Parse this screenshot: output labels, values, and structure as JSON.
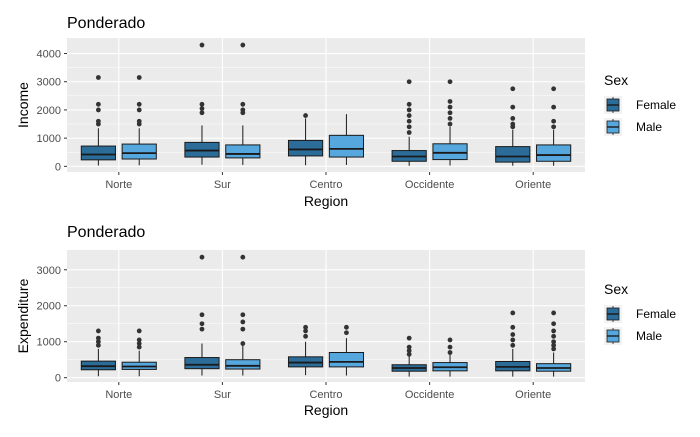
{
  "colors": {
    "female": "#2b6c99",
    "male": "#56a7dd",
    "panel_bg": "#ebebeb",
    "grid": "#ffffff",
    "outline": "#1a1a1a"
  },
  "chart_data": [
    {
      "type": "boxplot",
      "title": "Ponderado",
      "xlabel": "Region",
      "ylabel": "Income",
      "ylim": [
        -200,
        4550
      ],
      "yticks": [
        0,
        1000,
        2000,
        3000,
        4000
      ],
      "grid": true,
      "legend_position": "right",
      "legend_title": "Sex",
      "categories": [
        "Norte",
        "Sur",
        "Centro",
        "Occidente",
        "Oriente"
      ],
      "series": [
        {
          "name": "Female",
          "boxes": [
            {
              "min": 30,
              "q1": 230,
              "median": 420,
              "q3": 720,
              "max": 1350,
              "outliers": [
                1500,
                1600,
                2000,
                2200,
                3150
              ]
            },
            {
              "min": 60,
              "q1": 330,
              "median": 560,
              "q3": 850,
              "max": 1450,
              "outliers": [
                1900,
                2050,
                2200,
                4300
              ]
            },
            {
              "min": 40,
              "q1": 370,
              "median": 600,
              "q3": 920,
              "max": 1700,
              "outliers": [
                1800
              ]
            },
            {
              "min": 20,
              "q1": 180,
              "median": 350,
              "q3": 560,
              "max": 1050,
              "outliers": [
                1200,
                1400,
                1600,
                1800,
                2000,
                2200,
                3000
              ]
            },
            {
              "min": 20,
              "q1": 150,
              "median": 350,
              "q3": 700,
              "max": 1300,
              "outliers": [
                1400,
                1500,
                1700,
                2100,
                2750
              ]
            }
          ]
        },
        {
          "name": "Male",
          "boxes": [
            {
              "min": 40,
              "q1": 260,
              "median": 470,
              "q3": 790,
              "max": 1350,
              "outliers": [
                1500,
                1600,
                2000,
                2200,
                3150
              ]
            },
            {
              "min": 50,
              "q1": 300,
              "median": 440,
              "q3": 760,
              "max": 1450,
              "outliers": [
                1900,
                2000,
                2200,
                4300
              ]
            },
            {
              "min": 50,
              "q1": 330,
              "median": 620,
              "q3": 1100,
              "max": 1850,
              "outliers": []
            },
            {
              "min": 30,
              "q1": 240,
              "median": 480,
              "q3": 800,
              "max": 1400,
              "outliers": [
                1500,
                1700,
                1900,
                2100,
                2300,
                3000
              ]
            },
            {
              "min": 20,
              "q1": 180,
              "median": 400,
              "q3": 760,
              "max": 1300,
              "outliers": [
                1400,
                1600,
                2100,
                2750
              ]
            }
          ]
        }
      ]
    },
    {
      "type": "boxplot",
      "title": "Ponderado",
      "xlabel": "Region",
      "ylabel": "Expenditure",
      "ylim": [
        -120,
        3550
      ],
      "yticks": [
        0,
        1000,
        2000,
        3000
      ],
      "grid": true,
      "legend_position": "right",
      "legend_title": "Sex",
      "categories": [
        "Norte",
        "Sur",
        "Centro",
        "Occidente",
        "Oriente"
      ],
      "series": [
        {
          "name": "Female",
          "boxes": [
            {
              "min": 40,
              "q1": 220,
              "median": 320,
              "q3": 460,
              "max": 800,
              "outliers": [
                900,
                1000,
                1100,
                1300
              ]
            },
            {
              "min": 60,
              "q1": 250,
              "median": 360,
              "q3": 560,
              "max": 950,
              "outliers": [
                1350,
                1500,
                1750,
                3350
              ]
            },
            {
              "min": 70,
              "q1": 300,
              "median": 420,
              "q3": 580,
              "max": 1000,
              "outliers": [
                1150,
                1300,
                1400
              ]
            },
            {
              "min": 30,
              "q1": 180,
              "median": 270,
              "q3": 360,
              "max": 600,
              "outliers": [
                650,
                750,
                850,
                1100
              ]
            },
            {
              "min": 30,
              "q1": 190,
              "median": 300,
              "q3": 450,
              "max": 800,
              "outliers": [
                900,
                1050,
                1200,
                1400,
                1800
              ]
            }
          ]
        },
        {
          "name": "Male",
          "boxes": [
            {
              "min": 40,
              "q1": 230,
              "median": 310,
              "q3": 430,
              "max": 750,
              "outliers": [
                850,
                950,
                1050,
                1300
              ]
            },
            {
              "min": 60,
              "q1": 240,
              "median": 330,
              "q3": 500,
              "max": 900,
              "outliers": [
                950,
                1350,
                1550,
                1750,
                3350
              ]
            },
            {
              "min": 60,
              "q1": 300,
              "median": 440,
              "q3": 700,
              "max": 1100,
              "outliers": [
                1250,
                1400
              ]
            },
            {
              "min": 30,
              "q1": 190,
              "median": 290,
              "q3": 420,
              "max": 650,
              "outliers": [
                700,
                850,
                1050
              ]
            },
            {
              "min": 30,
              "q1": 180,
              "median": 270,
              "q3": 390,
              "max": 700,
              "outliers": [
                800,
                900,
                1000,
                1150,
                1300,
                1500,
                1800
              ]
            }
          ]
        }
      ]
    }
  ]
}
